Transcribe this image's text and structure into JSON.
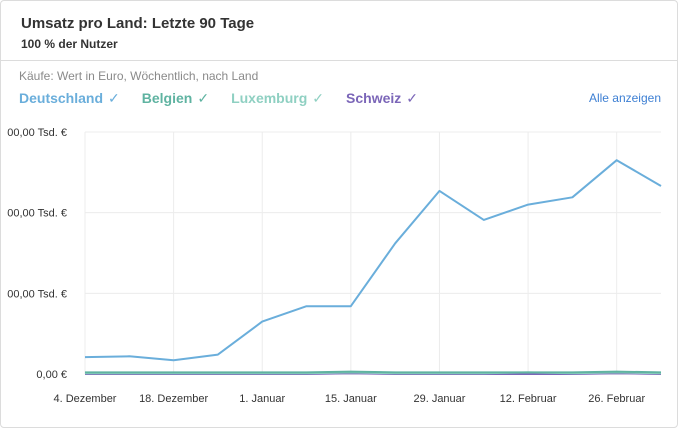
{
  "card": {
    "title": "Umsatz pro Land: Letzte 90 Tage",
    "subtitle": "100 % der Nutzer",
    "description": "Käufe: Wert in Euro, Wöchentlich, nach Land",
    "show_all_label": "Alle anzeigen"
  },
  "legend": [
    {
      "label": "Deutschland",
      "color": "#6aaedb",
      "check": "✓"
    },
    {
      "label": "Belgien",
      "color": "#5fb3a1",
      "check": "✓"
    },
    {
      "label": "Luxemburg",
      "color": "#8fd0c2",
      "check": "✓"
    },
    {
      "label": "Schweiz",
      "color": "#7b66b8",
      "check": "✓"
    }
  ],
  "chart_data": {
    "type": "line",
    "y_tick_labels": [
      "0,00 €",
      "00,00 Tsd. €",
      "00,00 Tsd. €",
      "00,00 Tsd. €"
    ],
    "y_tick_values": [
      0,
      1,
      2,
      3
    ],
    "ylim": [
      0,
      3
    ],
    "x_tick_labels": [
      "4. Dezember",
      "18. Dezember",
      "1. Januar",
      "15. Januar",
      "29. Januar",
      "12. Februar",
      "26. Februar"
    ],
    "x_tick_positions": [
      0,
      2,
      4,
      6,
      8,
      10,
      12
    ],
    "xlim": [
      0,
      13
    ],
    "grid": true,
    "series": [
      {
        "name": "Deutschland",
        "color": "#6aaedb",
        "values": [
          0.21,
          0.22,
          0.17,
          0.24,
          0.65,
          0.84,
          0.84,
          1.62,
          2.27,
          1.91,
          2.1,
          2.19,
          2.65,
          2.33
        ]
      },
      {
        "name": "Belgien",
        "color": "#5fb3a1",
        "values": [
          0.02,
          0.02,
          0.02,
          0.02,
          0.02,
          0.02,
          0.03,
          0.02,
          0.02,
          0.02,
          0.02,
          0.02,
          0.03,
          0.02
        ]
      },
      {
        "name": "Luxemburg",
        "color": "#8fd0c2",
        "values": [
          0.01,
          0.01,
          0.01,
          0.01,
          0.01,
          0.01,
          0.02,
          0.01,
          0.01,
          0.01,
          0.02,
          0.01,
          0.02,
          0.01
        ]
      },
      {
        "name": "Schweiz",
        "color": "#7b66b8",
        "values": [
          0.0,
          0.0,
          0.0,
          0.0,
          0.0,
          0.0,
          0.01,
          0.0,
          0.0,
          0.0,
          0.0,
          0.0,
          0.01,
          0.0
        ]
      }
    ]
  }
}
